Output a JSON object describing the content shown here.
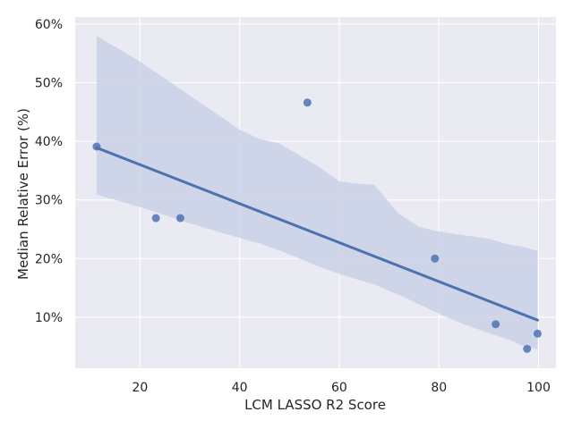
{
  "chart_data": {
    "type": "scatter",
    "title": "",
    "xlabel": "LCM LASSO R2 Score",
    "ylabel": "Median Relative Error (%)",
    "xlim": [
      7,
      103.5
    ],
    "ylim": [
      1.3,
      61.2
    ],
    "x_ticks": [
      20,
      40,
      60,
      80,
      100
    ],
    "x_tick_labels": [
      "20",
      "40",
      "60",
      "80",
      "100"
    ],
    "y_ticks": [
      10,
      20,
      30,
      40,
      50,
      60
    ],
    "y_tick_labels": [
      "10%",
      "20%",
      "30%",
      "40%",
      "50%",
      "60%"
    ],
    "grid": true,
    "legend": "none",
    "points": [
      {
        "x": 11.3,
        "y": 39.1
      },
      {
        "x": 23.2,
        "y": 26.9
      },
      {
        "x": 28.1,
        "y": 26.9
      },
      {
        "x": 53.6,
        "y": 46.6
      },
      {
        "x": 79.2,
        "y": 20.0
      },
      {
        "x": 91.4,
        "y": 8.8
      },
      {
        "x": 97.7,
        "y": 4.6
      },
      {
        "x": 99.8,
        "y": 7.2
      }
    ],
    "regression_line": [
      {
        "x": 11.3,
        "y": 38.9
      },
      {
        "x": 99.8,
        "y": 9.5
      }
    ],
    "confidence_band": [
      {
        "x": 11.3,
        "lower": 30.9,
        "upper": 58.0
      },
      {
        "x": 20,
        "lower": 28.8,
        "upper": 53.6
      },
      {
        "x": 30,
        "lower": 26.0,
        "upper": 47.8
      },
      {
        "x": 40,
        "lower": 23.5,
        "upper": 42.0
      },
      {
        "x": 44,
        "lower": 22.6,
        "upper": 40.4
      },
      {
        "x": 48,
        "lower": 21.4,
        "upper": 39.6
      },
      {
        "x": 52,
        "lower": 20.0,
        "upper": 37.6
      },
      {
        "x": 56,
        "lower": 18.6,
        "upper": 35.6
      },
      {
        "x": 60,
        "lower": 17.4,
        "upper": 33.2
      },
      {
        "x": 63,
        "lower": 16.6,
        "upper": 32.8
      },
      {
        "x": 67,
        "lower": 15.6,
        "upper": 32.6
      },
      {
        "x": 72,
        "lower": 13.8,
        "upper": 27.6
      },
      {
        "x": 76,
        "lower": 12.2,
        "upper": 25.4
      },
      {
        "x": 80,
        "lower": 10.6,
        "upper": 24.6
      },
      {
        "x": 85,
        "lower": 8.8,
        "upper": 24.0
      },
      {
        "x": 90,
        "lower": 7.3,
        "upper": 23.4
      },
      {
        "x": 94,
        "lower": 6.2,
        "upper": 22.4
      },
      {
        "x": 97,
        "lower": 5.1,
        "upper": 22.0
      },
      {
        "x": 99.8,
        "lower": 4.5,
        "upper": 21.3
      }
    ],
    "colors": {
      "background": "#eaeaf2",
      "grid": "#ffffff",
      "series": "#4c72b0",
      "band": "#c8d0e6"
    }
  }
}
